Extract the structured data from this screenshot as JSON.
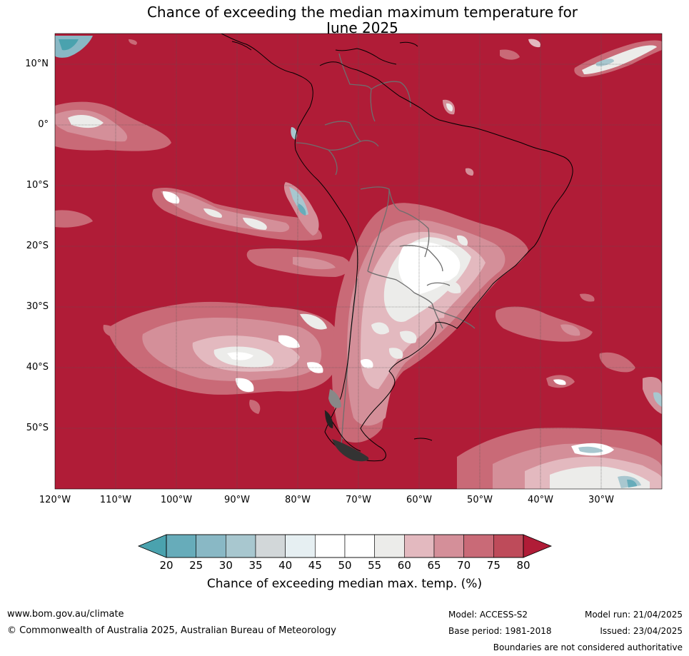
{
  "title": {
    "line1": "Chance of exceeding the median maximum temperature for",
    "line2": "June 2025"
  },
  "map": {
    "lat_labels": [
      "10°N",
      "0°",
      "10°S",
      "20°S",
      "30°S",
      "40°S",
      "50°S"
    ],
    "lon_labels": [
      "120°W",
      "110°W",
      "100°W",
      "90°W",
      "80°W",
      "70°W",
      "60°W",
      "50°W",
      "40°W",
      "30°W"
    ],
    "background_color": "#b01c37",
    "border_color": "#6e6e6e",
    "coast_color": "#000000"
  },
  "colorbar": {
    "ticks": [
      "20",
      "25",
      "30",
      "35",
      "40",
      "45",
      "50",
      "55",
      "60",
      "65",
      "70",
      "75",
      "80"
    ],
    "colors": [
      "#4aa2ae",
      "#67acba",
      "#89b8c5",
      "#a8c7cf",
      "#d2d7d9",
      "#e6eff2",
      "#ffffff",
      "#ffffff",
      "#ececea",
      "#e3b9bf",
      "#d48f99",
      "#c96a77",
      "#be4b5a",
      "#b01c37"
    ],
    "title": "Chance of exceeding median max. temp. (%)"
  },
  "footer": {
    "website": "www.bom.gov.au/climate",
    "copyright": "© Commonwealth of Australia 2025, Australian Bureau of Meteorology",
    "model": "Model: ACCESS-S2",
    "base_period": "Base period: 1981-2018",
    "model_run": "Model run: 21/04/2025",
    "issued": "Issued: 23/04/2025",
    "disclaimer": "Boundaries are not considered authoritative"
  }
}
